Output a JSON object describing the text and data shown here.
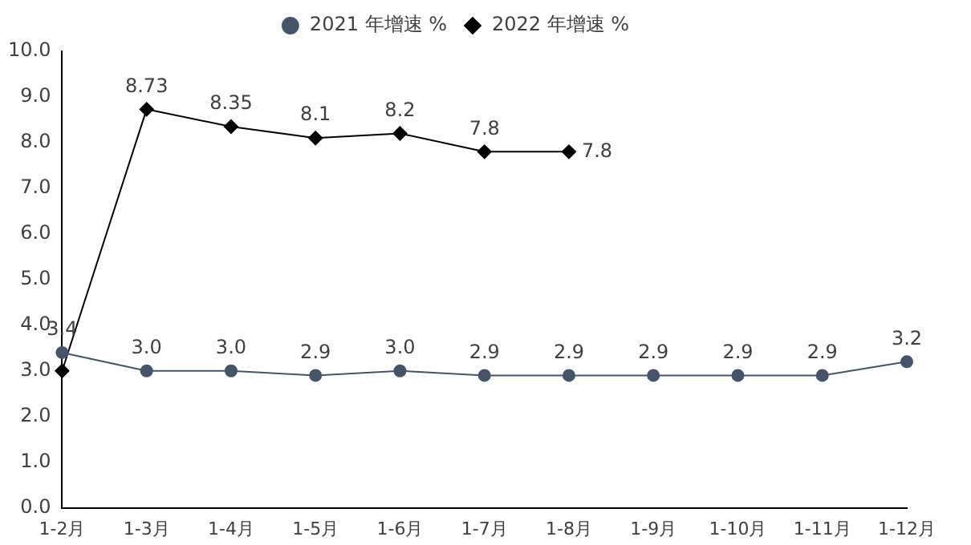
{
  "chart_data": {
    "type": "line",
    "categories": [
      "1-2月",
      "1-3月",
      "1-4月",
      "1-5月",
      "1-6月",
      "1-7月",
      "1-8月",
      "1-9月",
      "1-10月",
      "1-11月",
      "1-12月"
    ],
    "series": [
      {
        "name": "2021 年增速 %",
        "color": "#44546a",
        "marker": "circle",
        "values": [
          3.4,
          3.0,
          3.0,
          2.9,
          3.0,
          2.9,
          2.9,
          2.9,
          2.9,
          2.9,
          3.2
        ],
        "value_labels": [
          "3.4",
          "3.0",
          "3.0",
          "2.9",
          "3.0",
          "2.9",
          "2.9",
          "2.9",
          "2.9",
          "2.9",
          "3.2"
        ]
      },
      {
        "name": "2022 年增速 %",
        "color": "#000000",
        "marker": "diamond",
        "values": [
          3.0,
          8.73,
          8.35,
          8.1,
          8.2,
          7.8,
          7.8,
          null,
          null,
          null,
          null
        ],
        "value_labels": [
          null,
          "8.73",
          "8.35",
          "8.1",
          "8.2",
          "7.8",
          "7.8",
          null,
          null,
          null,
          null
        ]
      }
    ],
    "ylim": [
      0,
      10
    ],
    "yticks": [
      {
        "value": 0,
        "label": "0.0"
      },
      {
        "value": 1,
        "label": "1.0"
      },
      {
        "value": 2,
        "label": "2.0"
      },
      {
        "value": 3,
        "label": "3.0"
      },
      {
        "value": 4,
        "label": "4.0"
      },
      {
        "value": 5,
        "label": "5.0"
      },
      {
        "value": 6,
        "label": "6.0"
      },
      {
        "value": 7,
        "label": "7.0"
      },
      {
        "value": 8,
        "label": "8.0"
      },
      {
        "value": 9,
        "label": "9.0"
      },
      {
        "value": 10,
        "label": "10.0"
      }
    ],
    "grid": false,
    "legend": "top",
    "line_style": "solid"
  }
}
